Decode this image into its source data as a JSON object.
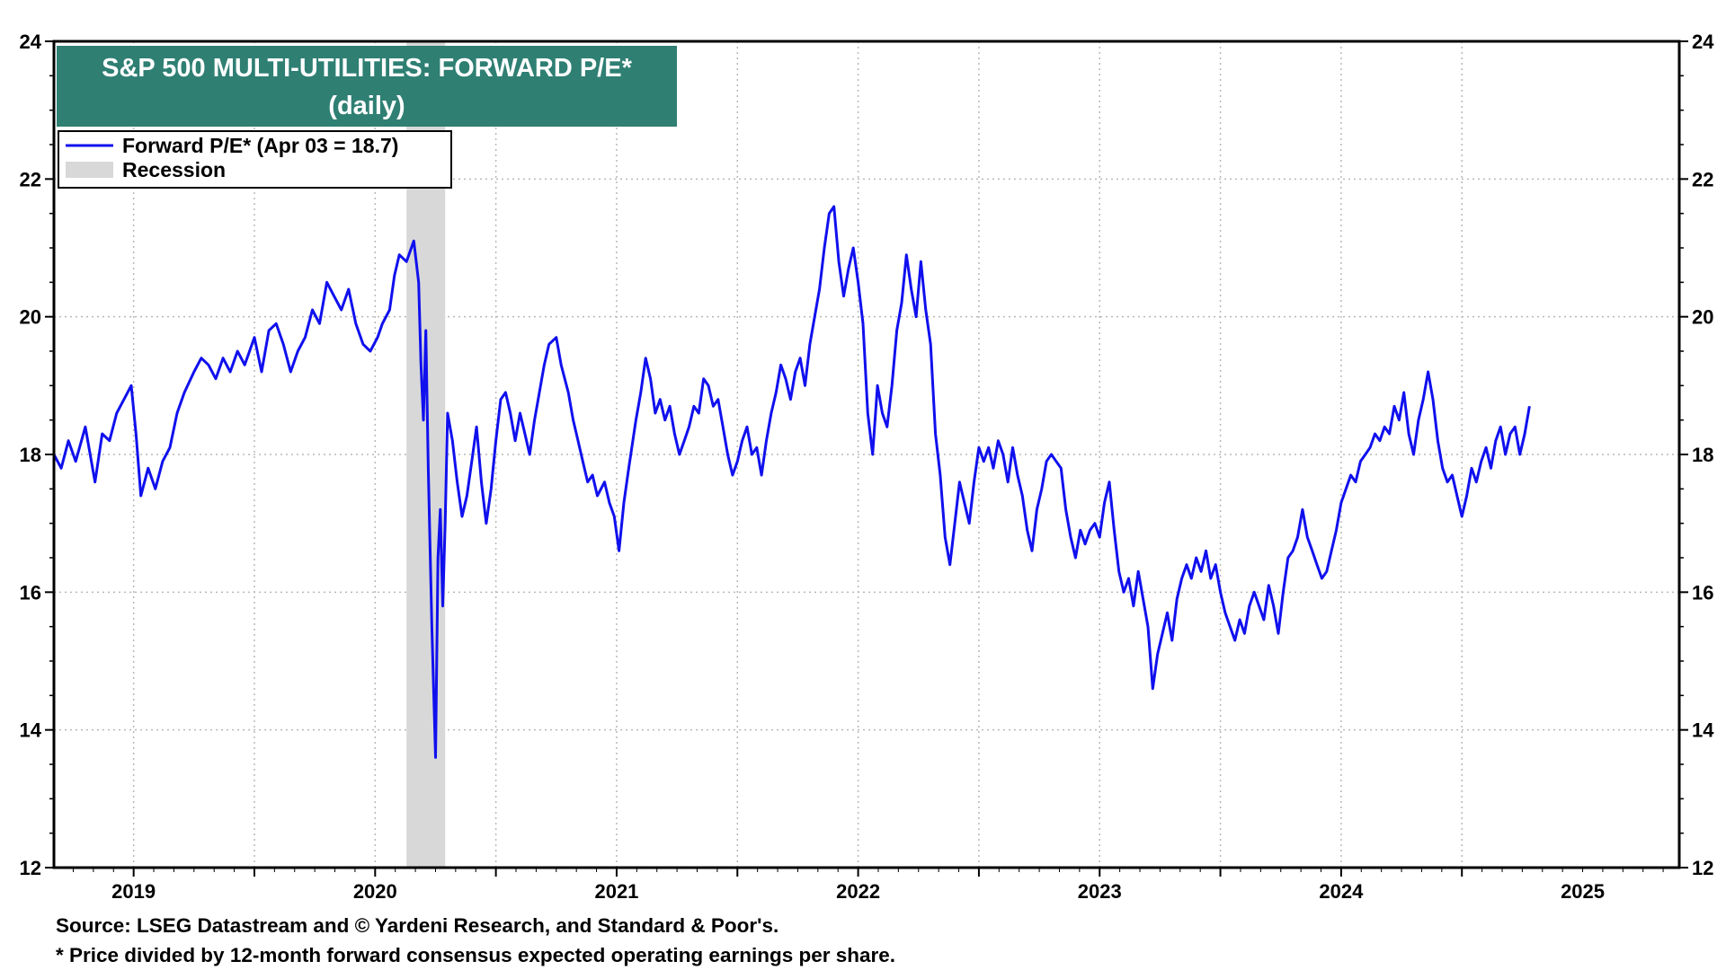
{
  "chart_data": {
    "type": "line",
    "title": "S&P 500 MULTI-UTILITIES: FORWARD P/E*",
    "subtitle": "(daily)",
    "ylim": [
      12,
      24
    ],
    "y_ticks": [
      "12",
      "14",
      "16",
      "18",
      "20",
      "22",
      "24"
    ],
    "x_range": [
      2018.67,
      2025.4
    ],
    "x_tick_labels": [
      "2019",
      "2020",
      "2021",
      "2022",
      "2023",
      "2024",
      "2025"
    ],
    "grid": true,
    "legend_position": "top-left",
    "legend": [
      {
        "label": "Forward P/E* (Apr 03 = 18.7)",
        "type": "line"
      },
      {
        "label": "Recession",
        "type": "band"
      }
    ],
    "recession": {
      "start": 2020.13,
      "end": 2020.29
    },
    "series": [
      {
        "name": "Forward P/E*",
        "points": [
          [
            2018.67,
            18.0
          ],
          [
            2018.7,
            17.8
          ],
          [
            2018.73,
            18.2
          ],
          [
            2018.76,
            17.9
          ],
          [
            2018.8,
            18.4
          ],
          [
            2018.84,
            17.6
          ],
          [
            2018.87,
            18.3
          ],
          [
            2018.9,
            18.2
          ],
          [
            2018.93,
            18.6
          ],
          [
            2018.96,
            18.8
          ],
          [
            2018.99,
            19.0
          ],
          [
            2019.01,
            18.3
          ],
          [
            2019.03,
            17.4
          ],
          [
            2019.06,
            17.8
          ],
          [
            2019.09,
            17.5
          ],
          [
            2019.12,
            17.9
          ],
          [
            2019.15,
            18.1
          ],
          [
            2019.18,
            18.6
          ],
          [
            2019.21,
            18.9
          ],
          [
            2019.25,
            19.2
          ],
          [
            2019.28,
            19.4
          ],
          [
            2019.31,
            19.3
          ],
          [
            2019.34,
            19.1
          ],
          [
            2019.37,
            19.4
          ],
          [
            2019.4,
            19.2
          ],
          [
            2019.43,
            19.5
          ],
          [
            2019.46,
            19.3
          ],
          [
            2019.5,
            19.7
          ],
          [
            2019.53,
            19.2
          ],
          [
            2019.56,
            19.8
          ],
          [
            2019.59,
            19.9
          ],
          [
            2019.62,
            19.6
          ],
          [
            2019.65,
            19.2
          ],
          [
            2019.68,
            19.5
          ],
          [
            2019.71,
            19.7
          ],
          [
            2019.74,
            20.1
          ],
          [
            2019.77,
            19.9
          ],
          [
            2019.8,
            20.5
          ],
          [
            2019.83,
            20.3
          ],
          [
            2019.86,
            20.1
          ],
          [
            2019.89,
            20.4
          ],
          [
            2019.92,
            19.9
          ],
          [
            2019.95,
            19.6
          ],
          [
            2019.98,
            19.5
          ],
          [
            2020.01,
            19.7
          ],
          [
            2020.03,
            19.9
          ],
          [
            2020.06,
            20.1
          ],
          [
            2020.08,
            20.6
          ],
          [
            2020.1,
            20.9
          ],
          [
            2020.13,
            20.8
          ],
          [
            2020.16,
            21.1
          ],
          [
            2020.18,
            20.5
          ],
          [
            2020.19,
            19.3
          ],
          [
            2020.2,
            18.5
          ],
          [
            2020.21,
            19.8
          ],
          [
            2020.22,
            17.8
          ],
          [
            2020.235,
            15.5
          ],
          [
            2020.25,
            13.6
          ],
          [
            2020.26,
            16.5
          ],
          [
            2020.27,
            17.2
          ],
          [
            2020.28,
            15.8
          ],
          [
            2020.29,
            17.0
          ],
          [
            2020.3,
            18.6
          ],
          [
            2020.32,
            18.2
          ],
          [
            2020.34,
            17.6
          ],
          [
            2020.36,
            17.1
          ],
          [
            2020.38,
            17.4
          ],
          [
            2020.4,
            17.9
          ],
          [
            2020.42,
            18.4
          ],
          [
            2020.44,
            17.6
          ],
          [
            2020.46,
            17.0
          ],
          [
            2020.48,
            17.5
          ],
          [
            2020.5,
            18.2
          ],
          [
            2020.52,
            18.8
          ],
          [
            2020.54,
            18.9
          ],
          [
            2020.56,
            18.6
          ],
          [
            2020.58,
            18.2
          ],
          [
            2020.6,
            18.6
          ],
          [
            2020.62,
            18.3
          ],
          [
            2020.64,
            18.0
          ],
          [
            2020.66,
            18.5
          ],
          [
            2020.68,
            18.9
          ],
          [
            2020.7,
            19.3
          ],
          [
            2020.72,
            19.6
          ],
          [
            2020.75,
            19.7
          ],
          [
            2020.77,
            19.3
          ],
          [
            2020.8,
            18.9
          ],
          [
            2020.82,
            18.5
          ],
          [
            2020.84,
            18.2
          ],
          [
            2020.86,
            17.9
          ],
          [
            2020.88,
            17.6
          ],
          [
            2020.9,
            17.7
          ],
          [
            2020.92,
            17.4
          ],
          [
            2020.95,
            17.6
          ],
          [
            2020.97,
            17.3
          ],
          [
            2020.99,
            17.1
          ],
          [
            2021.01,
            16.6
          ],
          [
            2021.03,
            17.3
          ],
          [
            2021.05,
            17.8
          ],
          [
            2021.08,
            18.5
          ],
          [
            2021.1,
            18.9
          ],
          [
            2021.12,
            19.4
          ],
          [
            2021.14,
            19.1
          ],
          [
            2021.16,
            18.6
          ],
          [
            2021.18,
            18.8
          ],
          [
            2021.2,
            18.5
          ],
          [
            2021.22,
            18.7
          ],
          [
            2021.24,
            18.3
          ],
          [
            2021.26,
            18.0
          ],
          [
            2021.28,
            18.2
          ],
          [
            2021.3,
            18.4
          ],
          [
            2021.32,
            18.7
          ],
          [
            2021.34,
            18.6
          ],
          [
            2021.36,
            19.1
          ],
          [
            2021.38,
            19.0
          ],
          [
            2021.4,
            18.7
          ],
          [
            2021.42,
            18.8
          ],
          [
            2021.44,
            18.4
          ],
          [
            2021.46,
            18.0
          ],
          [
            2021.48,
            17.7
          ],
          [
            2021.5,
            17.9
          ],
          [
            2021.52,
            18.2
          ],
          [
            2021.54,
            18.4
          ],
          [
            2021.56,
            18.0
          ],
          [
            2021.58,
            18.1
          ],
          [
            2021.6,
            17.7
          ],
          [
            2021.62,
            18.2
          ],
          [
            2021.64,
            18.6
          ],
          [
            2021.66,
            18.9
          ],
          [
            2021.68,
            19.3
          ],
          [
            2021.7,
            19.1
          ],
          [
            2021.72,
            18.8
          ],
          [
            2021.74,
            19.2
          ],
          [
            2021.76,
            19.4
          ],
          [
            2021.78,
            19.0
          ],
          [
            2021.8,
            19.6
          ],
          [
            2021.82,
            20.0
          ],
          [
            2021.84,
            20.4
          ],
          [
            2021.86,
            21.0
          ],
          [
            2021.88,
            21.5
          ],
          [
            2021.9,
            21.6
          ],
          [
            2021.92,
            20.8
          ],
          [
            2021.94,
            20.3
          ],
          [
            2021.96,
            20.7
          ],
          [
            2021.98,
            21.0
          ],
          [
            2022.0,
            20.5
          ],
          [
            2022.02,
            19.9
          ],
          [
            2022.04,
            18.6
          ],
          [
            2022.06,
            18.0
          ],
          [
            2022.08,
            19.0
          ],
          [
            2022.1,
            18.6
          ],
          [
            2022.12,
            18.4
          ],
          [
            2022.14,
            19.0
          ],
          [
            2022.16,
            19.8
          ],
          [
            2022.18,
            20.2
          ],
          [
            2022.2,
            20.9
          ],
          [
            2022.22,
            20.4
          ],
          [
            2022.24,
            20.0
          ],
          [
            2022.26,
            20.8
          ],
          [
            2022.28,
            20.1
          ],
          [
            2022.3,
            19.6
          ],
          [
            2022.32,
            18.3
          ],
          [
            2022.34,
            17.7
          ],
          [
            2022.36,
            16.8
          ],
          [
            2022.38,
            16.4
          ],
          [
            2022.4,
            17.0
          ],
          [
            2022.42,
            17.6
          ],
          [
            2022.44,
            17.3
          ],
          [
            2022.46,
            17.0
          ],
          [
            2022.48,
            17.6
          ],
          [
            2022.5,
            18.1
          ],
          [
            2022.52,
            17.9
          ],
          [
            2022.54,
            18.1
          ],
          [
            2022.56,
            17.8
          ],
          [
            2022.58,
            18.2
          ],
          [
            2022.6,
            18.0
          ],
          [
            2022.62,
            17.6
          ],
          [
            2022.64,
            18.1
          ],
          [
            2022.66,
            17.7
          ],
          [
            2022.68,
            17.4
          ],
          [
            2022.7,
            16.9
          ],
          [
            2022.72,
            16.6
          ],
          [
            2022.74,
            17.2
          ],
          [
            2022.76,
            17.5
          ],
          [
            2022.78,
            17.9
          ],
          [
            2022.8,
            18.0
          ],
          [
            2022.82,
            17.9
          ],
          [
            2022.84,
            17.8
          ],
          [
            2022.86,
            17.2
          ],
          [
            2022.88,
            16.8
          ],
          [
            2022.9,
            16.5
          ],
          [
            2022.92,
            16.9
          ],
          [
            2022.94,
            16.7
          ],
          [
            2022.96,
            16.9
          ],
          [
            2022.98,
            17.0
          ],
          [
            2023.0,
            16.8
          ],
          [
            2023.02,
            17.3
          ],
          [
            2023.04,
            17.6
          ],
          [
            2023.06,
            16.9
          ],
          [
            2023.08,
            16.3
          ],
          [
            2023.1,
            16.0
          ],
          [
            2023.12,
            16.2
          ],
          [
            2023.14,
            15.8
          ],
          [
            2023.16,
            16.3
          ],
          [
            2023.18,
            15.9
          ],
          [
            2023.2,
            15.5
          ],
          [
            2023.22,
            14.6
          ],
          [
            2023.24,
            15.1
          ],
          [
            2023.26,
            15.4
          ],
          [
            2023.28,
            15.7
          ],
          [
            2023.3,
            15.3
          ],
          [
            2023.32,
            15.9
          ],
          [
            2023.34,
            16.2
          ],
          [
            2023.36,
            16.4
          ],
          [
            2023.38,
            16.2
          ],
          [
            2023.4,
            16.5
          ],
          [
            2023.42,
            16.3
          ],
          [
            2023.44,
            16.6
          ],
          [
            2023.46,
            16.2
          ],
          [
            2023.48,
            16.4
          ],
          [
            2023.5,
            16.0
          ],
          [
            2023.52,
            15.7
          ],
          [
            2023.54,
            15.5
          ],
          [
            2023.56,
            15.3
          ],
          [
            2023.58,
            15.6
          ],
          [
            2023.6,
            15.4
          ],
          [
            2023.62,
            15.8
          ],
          [
            2023.64,
            16.0
          ],
          [
            2023.66,
            15.8
          ],
          [
            2023.68,
            15.6
          ],
          [
            2023.7,
            16.1
          ],
          [
            2023.72,
            15.8
          ],
          [
            2023.74,
            15.4
          ],
          [
            2023.76,
            16.0
          ],
          [
            2023.78,
            16.5
          ],
          [
            2023.8,
            16.6
          ],
          [
            2023.82,
            16.8
          ],
          [
            2023.84,
            17.2
          ],
          [
            2023.86,
            16.8
          ],
          [
            2023.88,
            16.6
          ],
          [
            2023.9,
            16.4
          ],
          [
            2023.92,
            16.2
          ],
          [
            2023.94,
            16.3
          ],
          [
            2023.96,
            16.6
          ],
          [
            2023.98,
            16.9
          ],
          [
            2024.0,
            17.3
          ],
          [
            2024.02,
            17.5
          ],
          [
            2024.04,
            17.7
          ],
          [
            2024.06,
            17.6
          ],
          [
            2024.08,
            17.9
          ],
          [
            2024.1,
            18.0
          ],
          [
            2024.12,
            18.1
          ],
          [
            2024.14,
            18.3
          ],
          [
            2024.16,
            18.2
          ],
          [
            2024.18,
            18.4
          ],
          [
            2024.2,
            18.3
          ],
          [
            2024.22,
            18.7
          ],
          [
            2024.24,
            18.5
          ],
          [
            2024.26,
            18.9
          ],
          [
            2024.28,
            18.3
          ],
          [
            2024.3,
            18.0
          ],
          [
            2024.32,
            18.5
          ],
          [
            2024.34,
            18.8
          ],
          [
            2024.36,
            19.2
          ],
          [
            2024.38,
            18.8
          ],
          [
            2024.4,
            18.2
          ],
          [
            2024.42,
            17.8
          ],
          [
            2024.44,
            17.6
          ],
          [
            2024.46,
            17.7
          ],
          [
            2024.48,
            17.4
          ],
          [
            2024.5,
            17.1
          ],
          [
            2024.52,
            17.4
          ],
          [
            2024.54,
            17.8
          ],
          [
            2024.56,
            17.6
          ],
          [
            2024.58,
            17.9
          ],
          [
            2024.6,
            18.1
          ],
          [
            2024.62,
            17.8
          ],
          [
            2024.64,
            18.2
          ],
          [
            2024.66,
            18.4
          ],
          [
            2024.68,
            18.0
          ],
          [
            2024.7,
            18.3
          ],
          [
            2024.72,
            18.4
          ],
          [
            2024.74,
            18.0
          ],
          [
            2024.76,
            18.3
          ],
          [
            2024.78,
            18.7
          ]
        ]
      }
    ],
    "x_tick_positions": [
      2019.0,
      2019.5,
      2020.0,
      2020.5,
      2021.0,
      2021.5,
      2022.0,
      2022.5,
      2023.0,
      2023.5,
      2024.0,
      2024.5
    ],
    "colors": {
      "line": "#1010ee",
      "recession": "#d8d8d8",
      "title_bg": "#2f7f73",
      "grid": "#b8b8b8"
    }
  },
  "footer": {
    "source": "Source: LSEG Datastream and © Yardeni Research, and Standard & Poor's.",
    "note": "* Price divided by 12-month forward consensus expected operating earnings per share."
  }
}
